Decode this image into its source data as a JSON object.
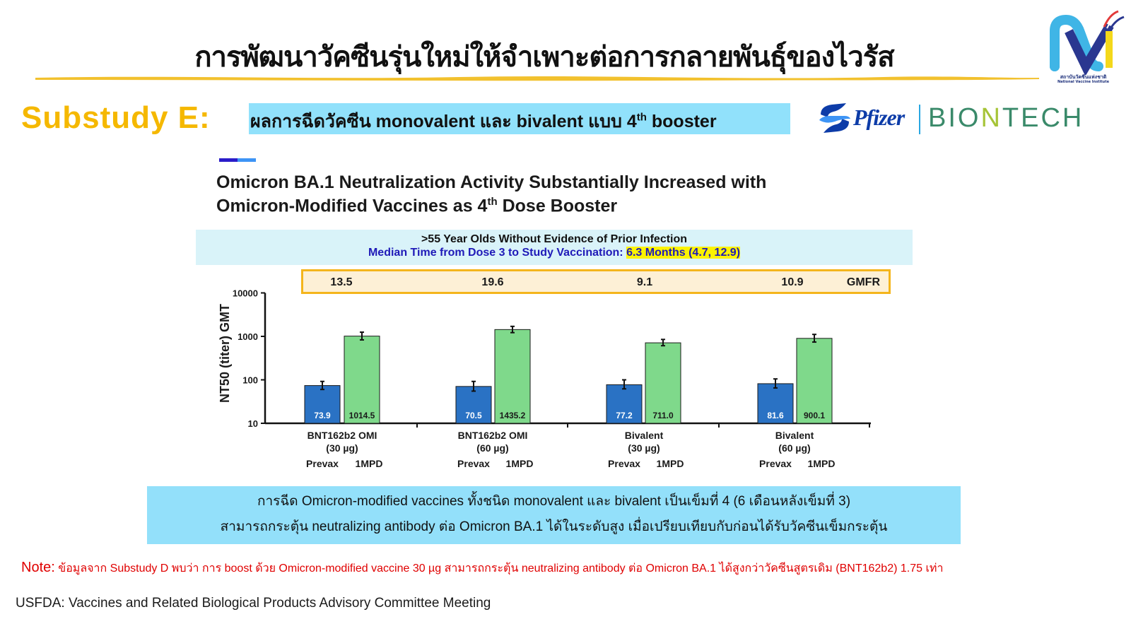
{
  "header": {
    "title": "การพัฒนาวัคซีนรุ่นใหม่ให้จำเพาะต่อการกลายพันธุ์ของไวรัส",
    "logo": {
      "name": "nvi-logo",
      "caption_th": "สถาบันวัคซีนแห่งชาติ",
      "caption_en": "National Vaccine Institute"
    }
  },
  "substudy": {
    "label": "Substudy E:",
    "banner_main": "ผลการฉีดวัคซีน monovalent และ bivalent แบบ 4",
    "banner_sup": "th",
    "banner_tail": " booster"
  },
  "partners": {
    "pfizer": "Pfizer",
    "biontech_pre": "BIO",
    "biontech_n": "N",
    "biontech_post": "TECH"
  },
  "chart_heading": {
    "line1": "Omicron BA.1 Neutralization Activity Substantially Increased with",
    "line2_pre": "Omicron-Modified Vaccines as 4",
    "line2_sup": "th",
    "line2_post": " Dose Booster"
  },
  "population": {
    "line1": ">55 Year Olds Without Evidence of Prior Infection",
    "line2_pre": "Median Time from Dose 3 to Study Vaccination: ",
    "line2_highlight": "6.3 Months (4.7, 12.9)"
  },
  "gmfr": {
    "label": "GMFR",
    "values": [
      "13.5",
      "19.6",
      "9.1",
      "10.9"
    ]
  },
  "chart_data": {
    "type": "bar",
    "title": "Omicron BA.1 Neutralization Activity Substantially Increased with Omicron-Modified Vaccines as 4th Dose Booster",
    "subtitle": ">55 Year Olds Without Evidence of Prior Infection; Median Time from Dose 3 to Study Vaccination: 6.3 Months (4.7, 12.9)",
    "xlabel": "",
    "ylabel": "NT50 (titer) GMT",
    "yscale": "log",
    "ylim": [
      10,
      10000
    ],
    "yticks": [
      "10",
      "100",
      "1000",
      "10000"
    ],
    "grid": false,
    "categories": [
      "BNT162b2 OMI (30 µg)",
      "BNT162b2 OMI (60 µg)",
      "Bivalent (30 µg)",
      "Bivalent (60 µg)"
    ],
    "category_lines": [
      [
        "BNT162b2 OMI",
        "(30 µg)"
      ],
      [
        "BNT162b2 OMI",
        "(60 µg)"
      ],
      [
        "Bivalent",
        "(30 µg)"
      ],
      [
        "Bivalent",
        "(60 µg)"
      ]
    ],
    "series": [
      {
        "name": "Prevax",
        "color": "#2a72c4",
        "values": [
          73.9,
          70.5,
          77.2,
          81.6
        ],
        "labels": [
          "73.9",
          "70.5",
          "77.2",
          "81.6"
        ],
        "err_low": [
          60,
          55,
          62,
          65
        ],
        "err_high": [
          92,
          92,
          100,
          105
        ]
      },
      {
        "name": "1MPD",
        "color": "#7fd98b",
        "values": [
          1014.5,
          1435.2,
          711.0,
          900.1
        ],
        "labels": [
          "1014.5",
          "1435.2",
          "711.0",
          "900.1"
        ],
        "err_low": [
          830,
          1220,
          610,
          740
        ],
        "err_high": [
          1250,
          1700,
          850,
          1110
        ]
      }
    ],
    "annotations": {
      "gmfr_label": "GMFR",
      "gmfr": [
        13.5,
        19.6,
        9.1,
        10.9
      ]
    },
    "legend": "none (series named under each bar pair)"
  },
  "summary": {
    "line1": "การฉีด Omicron-modified vaccines ทั้งชนิด monovalent และ bivalent เป็นเข็มที่ 4 (6 เดือนหลังเข็มที่ 3)",
    "line2": "สามารถกระตุ้น neutralizing antibody ต่อ Omicron BA.1 ได้ในระดับสูง เมื่อเปรียบเทียบกับก่อนได้รับวัคซีนเข็มกระตุ้น"
  },
  "note": {
    "label": "Note:",
    "text": " ข้อมูลจาก Substudy D พบว่า การ boost ด้วย Omicron-modified vaccine 30 µg สามารถกระตุ้น neutralizing antibody ต่อ Omicron BA.1 ได้สูงกว่าวัคซีนสูตรเดิม (BNT162b2) 1.75 เท่า"
  },
  "source": "USFDA: Vaccines and Related Biological Products Advisory Committee Meeting",
  "colors": {
    "prevax": "#2a72c4",
    "mpd": "#7fd98b",
    "substudy": "#f5b800",
    "banner": "#91e1fb",
    "gmfr_border": "#f4b51c",
    "note": "#e00000"
  }
}
